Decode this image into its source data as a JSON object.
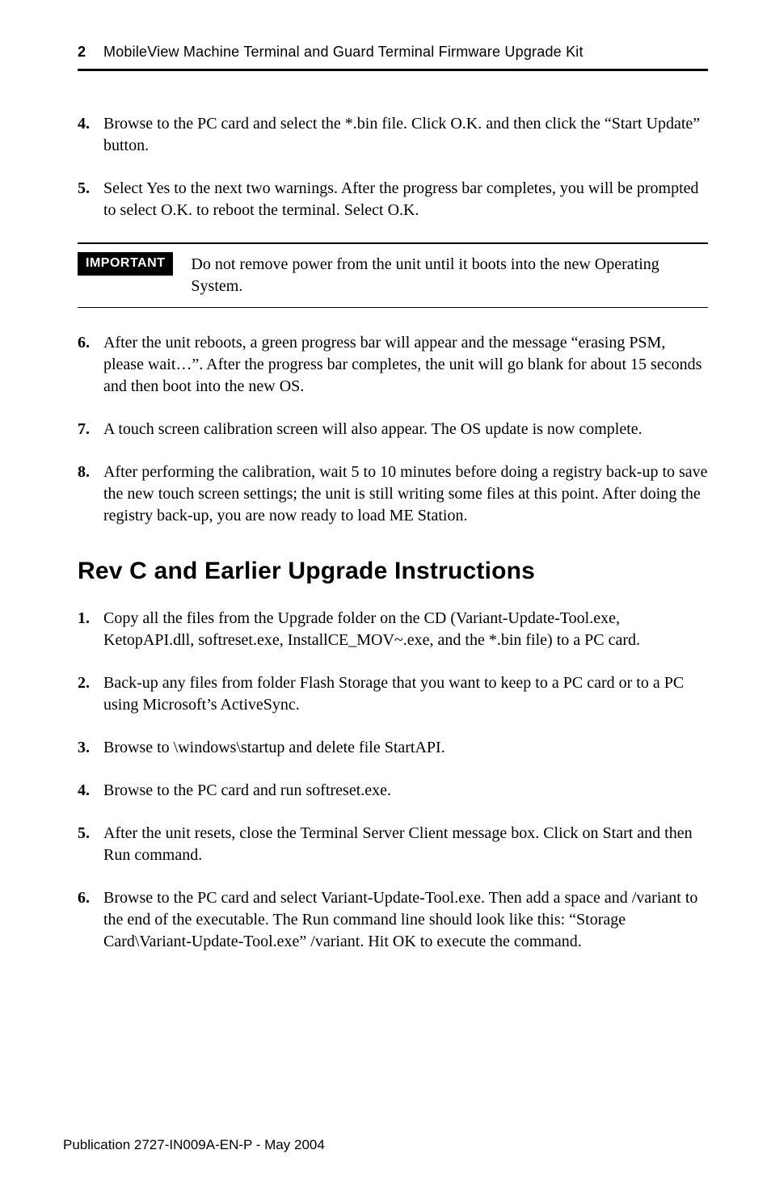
{
  "header": {
    "page_number": "2",
    "title": "MobileView Machine Terminal and Guard Terminal Firmware Upgrade Kit"
  },
  "steps_a": [
    {
      "n": "4.",
      "text": "Browse to the PC card and select the *.bin file.  Click O.K. and then click the “Start Update” button."
    },
    {
      "n": "5.",
      "text": "Select Yes to the next two warnings.  After the progress bar completes, you will be prompted to select O.K. to reboot the terminal.   Select O.K."
    }
  ],
  "callout": {
    "badge": "IMPORTANT",
    "text": "Do not remove power from the unit until it boots into the new Operating System."
  },
  "steps_b": [
    {
      "n": "6.",
      "text": "After the unit reboots, a green progress bar will appear and the message “erasing PSM, please wait…”.  After the progress bar completes, the unit will go blank for about 15 seconds and then boot into the new OS."
    },
    {
      "n": "7.",
      "text": "A touch screen calibration screen will also appear.   The OS update is now complete."
    },
    {
      "n": "8.",
      "text": "After performing the calibration, wait 5 to 10 minutes before doing a registry back-up to save the new touch screen settings; the unit is still writing some files at this point.   After doing the registry back-up, you are now ready to load ME Station."
    }
  ],
  "section_title": "Rev C and Earlier Upgrade Instructions",
  "steps_c": [
    {
      "n": "1.",
      "text": "Copy all the files from the Upgrade folder on the CD (Variant-Update-Tool.exe, KetopAPI.dll, softreset.exe,  InstallCE_MOV~.exe, and the *.bin file) to a PC card."
    },
    {
      "n": "2.",
      "text": "Back-up any files from folder Flash Storage that you want to keep to a PC card or to a PC using Microsoft’s ActiveSync."
    },
    {
      "n": "3.",
      "text": "Browse to \\windows\\startup and delete file StartAPI."
    },
    {
      "n": "4.",
      "text": "Browse to the PC card and run softreset.exe."
    },
    {
      "n": "5.",
      "text": "After the unit resets, close the Terminal Server Client message box.  Click on Start and then Run command."
    },
    {
      "n": "6.",
      "text": "Browse to the PC card and select Variant-Update-Tool.exe.  Then add a space and /variant to the end of the executable.  The Run command line should look like this:  “Storage Card\\Variant-Update-Tool.exe” /variant.   Hit OK to execute the command."
    }
  ],
  "footer": "Publication 2727-IN009A-EN-P - May 2004"
}
